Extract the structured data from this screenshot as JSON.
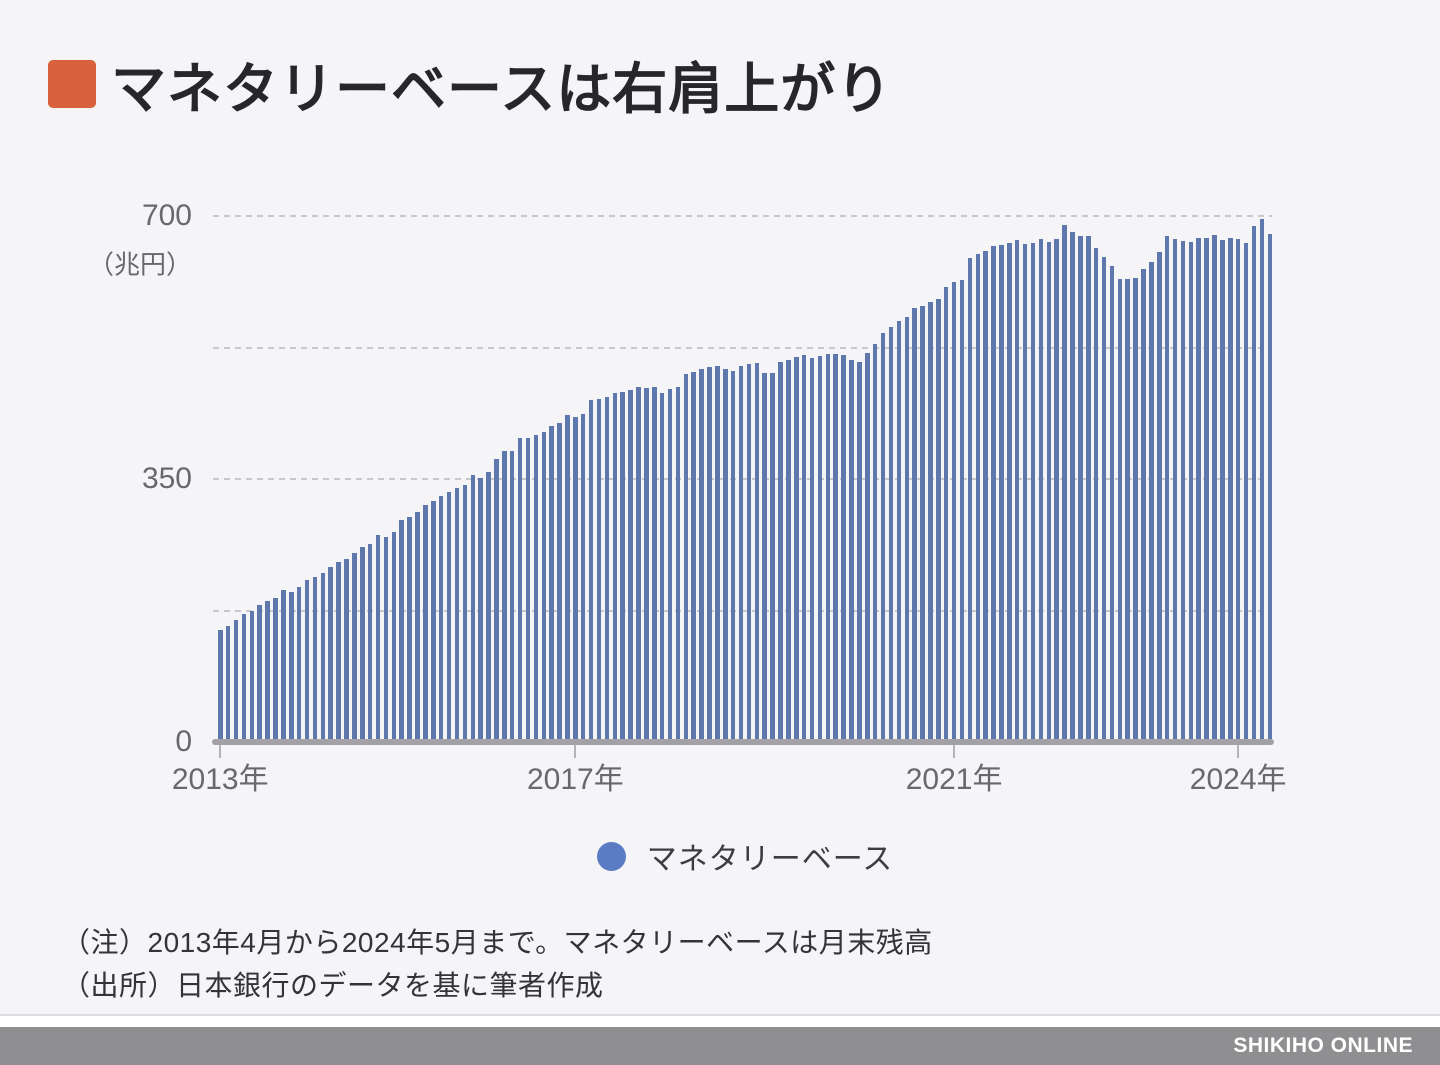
{
  "title": {
    "text": "マネタリーベースは右肩上がり"
  },
  "legend": {
    "label": "マネタリーベース"
  },
  "notes": [
    "（注）2013年4月から2024年5月まで。マネタリーベースは月末残高",
    "（出所）日本銀行のデータを基に筆者作成"
  ],
  "footer": {
    "brand": "SHIKIHO ONLINE"
  },
  "colors": {
    "background": "#f5f4f6",
    "title_bullet": "#d9603c",
    "bar": "#5e77ad",
    "legend_dot": "#5b7cc4",
    "gridline": "#c7c7cc",
    "axis_line": "#a1a1a6",
    "axis_text": "#68686d",
    "footer_bar": "#8f8f92"
  },
  "chart_data": {
    "type": "bar",
    "title": "マネタリーベースは右肩上がり",
    "xlabel": "",
    "ylabel": "（兆円）",
    "ylim": [
      0,
      700
    ],
    "grid": true,
    "grid_lines": [
      175,
      350,
      525,
      700
    ],
    "yticks": [
      {
        "label": "0",
        "value": 0
      },
      {
        "label": "350",
        "value": 350
      },
      {
        "label": "700",
        "value": 700
      }
    ],
    "xticks": [
      {
        "label": "2013年",
        "month_index": 0
      },
      {
        "label": "2017年",
        "month_index": 45
      },
      {
        "label": "2021年",
        "month_index": 93
      },
      {
        "label": "2024年",
        "month_index": 129
      }
    ],
    "x_start": "2013-04",
    "x_end": "2024-05",
    "x_frequency": "monthly",
    "legend_position": "bottom",
    "series": [
      {
        "name": "マネタリーベース",
        "values": [
          149,
          154,
          163,
          170,
          174,
          182,
          187,
          192,
          202,
          200,
          206,
          215,
          220,
          225,
          233,
          240,
          244,
          252,
          259,
          263,
          276,
          273,
          279,
          296,
          300,
          306,
          316,
          321,
          327,
          333,
          338,
          342,
          356,
          352,
          360,
          376,
          387,
          387,
          404,
          404,
          408,
          413,
          420,
          424,
          435,
          432,
          437,
          455,
          457,
          459,
          464,
          466,
          469,
          472,
          471,
          473,
          465,
          470,
          473,
          490,
          493,
          496,
          499,
          500,
          497,
          494,
          500,
          503,
          505,
          491,
          491,
          506,
          509,
          512,
          515,
          511,
          514,
          517,
          516,
          515,
          508,
          506,
          518,
          530,
          544,
          552,
          560,
          565,
          577,
          580,
          585,
          590,
          606,
          612,
          615,
          644,
          650,
          654,
          660,
          661,
          664,
          668,
          663,
          664,
          670,
          665,
          669,
          688,
          679,
          673,
          673,
          658,
          645,
          633,
          616,
          616,
          618,
          630,
          639,
          652,
          674,
          670,
          667,
          665,
          671,
          671,
          675,
          668,
          671,
          669,
          664,
          687,
          696,
          676
        ]
      }
    ]
  }
}
